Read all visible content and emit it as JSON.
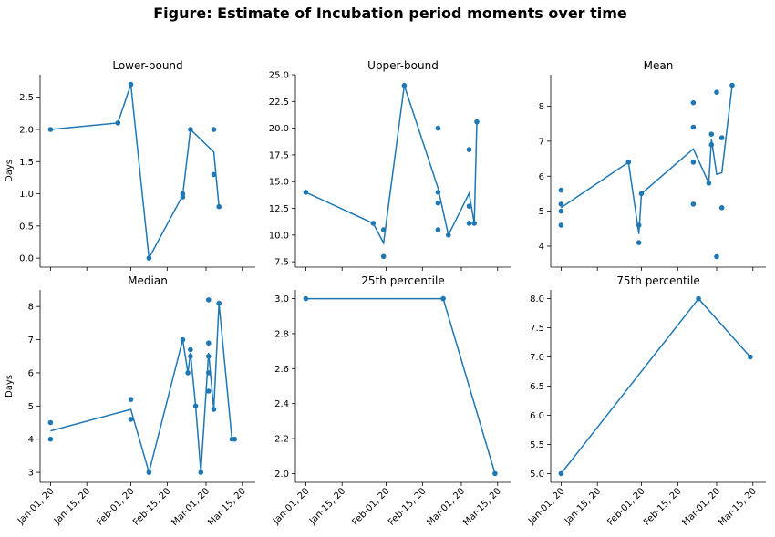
{
  "figure": {
    "title": "Figure: Estimate of Incubation period moments over time",
    "line_color": "#1f77b4",
    "point_color": "#1f77b4",
    "ylabel": "Days"
  },
  "chart_data": [
    {
      "type": "scatter",
      "title": "Lower-bound",
      "ylabel": "Days",
      "x_ticks": [
        "2020-01-01",
        "2020-01-15",
        "2020-02-01",
        "2020-02-15",
        "2020-03-01",
        "2020-03-15"
      ],
      "x_tick_labels": [
        "Jan-01, 20",
        "Jan-15, 20",
        "Feb-01, 20",
        "Feb-15, 20",
        "Mar-01, 20",
        "Mar-15, 20"
      ],
      "xlim": [
        "2019-12-28",
        "2020-03-20"
      ],
      "ylim": [
        -0.14,
        2.85
      ],
      "y_ticks": [
        0.0,
        0.5,
        1.0,
        1.5,
        2.0,
        2.5
      ],
      "y_tick_labels": [
        "0.0",
        "0.5",
        "1.0",
        "1.5",
        "2.0",
        "2.5"
      ],
      "show_x_labels": false,
      "points": [
        {
          "x": "2020-01-01",
          "y": 2.0
        },
        {
          "x": "2020-01-27",
          "y": 2.1
        },
        {
          "x": "2020-02-01",
          "y": 2.7
        },
        {
          "x": "2020-02-08",
          "y": 0.0
        },
        {
          "x": "2020-02-21",
          "y": 0.95
        },
        {
          "x": "2020-02-21",
          "y": 1.0
        },
        {
          "x": "2020-02-24",
          "y": 2.0
        },
        {
          "x": "2020-03-04",
          "y": 2.0
        },
        {
          "x": "2020-03-04",
          "y": 1.3
        },
        {
          "x": "2020-03-06",
          "y": 0.8
        }
      ],
      "line": [
        {
          "x": "2020-01-01",
          "y": 2.0
        },
        {
          "x": "2020-01-27",
          "y": 2.1
        },
        {
          "x": "2020-02-01",
          "y": 2.7
        },
        {
          "x": "2020-02-08",
          "y": 0.0
        },
        {
          "x": "2020-02-21",
          "y": 0.975
        },
        {
          "x": "2020-02-24",
          "y": 2.0
        },
        {
          "x": "2020-03-04",
          "y": 1.65
        },
        {
          "x": "2020-03-06",
          "y": 0.8
        }
      ]
    },
    {
      "type": "scatter",
      "title": "Upper-bound",
      "ylabel": "",
      "x_ticks": [
        "2020-01-01",
        "2020-01-15",
        "2020-02-01",
        "2020-02-15",
        "2020-03-01",
        "2020-03-15"
      ],
      "x_tick_labels": [
        "Jan-01, 20",
        "Jan-15, 20",
        "Feb-01, 20",
        "Feb-15, 20",
        "Mar-01, 20",
        "Mar-15, 20"
      ],
      "xlim": [
        "2019-12-28",
        "2020-03-20"
      ],
      "ylim": [
        7.0,
        25.0
      ],
      "y_ticks": [
        7.5,
        10.0,
        12.5,
        15.0,
        17.5,
        20.0,
        22.5,
        25.0
      ],
      "y_tick_labels": [
        "7.5",
        "10.0",
        "12.5",
        "15.0",
        "17.5",
        "20.0",
        "22.5",
        "25.0"
      ],
      "show_x_labels": false,
      "points": [
        {
          "x": "2020-01-01",
          "y": 14.0
        },
        {
          "x": "2020-01-27",
          "y": 11.1
        },
        {
          "x": "2020-01-31",
          "y": 8.0
        },
        {
          "x": "2020-01-31",
          "y": 10.5
        },
        {
          "x": "2020-02-08",
          "y": 24.0
        },
        {
          "x": "2020-02-21",
          "y": 20.0
        },
        {
          "x": "2020-02-21",
          "y": 14.0
        },
        {
          "x": "2020-02-21",
          "y": 13.0
        },
        {
          "x": "2020-02-21",
          "y": 10.5
        },
        {
          "x": "2020-02-25",
          "y": 10.0
        },
        {
          "x": "2020-03-04",
          "y": 18.0
        },
        {
          "x": "2020-03-04",
          "y": 12.7
        },
        {
          "x": "2020-03-04",
          "y": 11.1
        },
        {
          "x": "2020-03-06",
          "y": 11.1
        },
        {
          "x": "2020-03-07",
          "y": 20.6
        }
      ],
      "line": [
        {
          "x": "2020-01-01",
          "y": 14.0
        },
        {
          "x": "2020-01-27",
          "y": 11.1
        },
        {
          "x": "2020-01-31",
          "y": 9.25
        },
        {
          "x": "2020-02-08",
          "y": 24.0
        },
        {
          "x": "2020-02-21",
          "y": 14.4
        },
        {
          "x": "2020-02-25",
          "y": 10.0
        },
        {
          "x": "2020-03-04",
          "y": 13.9
        },
        {
          "x": "2020-03-06",
          "y": 11.1
        },
        {
          "x": "2020-03-07",
          "y": 20.6
        }
      ]
    },
    {
      "type": "scatter",
      "title": "Mean",
      "ylabel": "",
      "x_ticks": [
        "2020-01-01",
        "2020-01-15",
        "2020-02-01",
        "2020-02-15",
        "2020-03-01",
        "2020-03-15"
      ],
      "x_tick_labels": [
        "Jan-01, 20",
        "Jan-15, 20",
        "Feb-01, 20",
        "Feb-15, 20",
        "Mar-01, 20",
        "Mar-15, 20"
      ],
      "xlim": [
        "2019-12-28",
        "2020-03-20"
      ],
      "ylim": [
        3.4,
        8.9
      ],
      "y_ticks": [
        4,
        5,
        6,
        7,
        8
      ],
      "y_tick_labels": [
        "4",
        "5",
        "6",
        "7",
        "8"
      ],
      "show_x_labels": false,
      "points": [
        {
          "x": "2020-01-01",
          "y": 5.6
        },
        {
          "x": "2020-01-01",
          "y": 5.2
        },
        {
          "x": "2020-01-01",
          "y": 5.0
        },
        {
          "x": "2020-01-01",
          "y": 4.6
        },
        {
          "x": "2020-01-27",
          "y": 6.4
        },
        {
          "x": "2020-01-31",
          "y": 4.6
        },
        {
          "x": "2020-01-31",
          "y": 4.1
        },
        {
          "x": "2020-02-01",
          "y": 5.5
        },
        {
          "x": "2020-02-21",
          "y": 8.1
        },
        {
          "x": "2020-02-21",
          "y": 7.4
        },
        {
          "x": "2020-02-21",
          "y": 6.4
        },
        {
          "x": "2020-02-21",
          "y": 5.2
        },
        {
          "x": "2020-02-27",
          "y": 5.8
        },
        {
          "x": "2020-02-28",
          "y": 7.2
        },
        {
          "x": "2020-02-28",
          "y": 6.9
        },
        {
          "x": "2020-03-01",
          "y": 8.4
        },
        {
          "x": "2020-03-01",
          "y": 3.7
        },
        {
          "x": "2020-03-03",
          "y": 7.1
        },
        {
          "x": "2020-03-03",
          "y": 5.1
        },
        {
          "x": "2020-03-07",
          "y": 8.6
        }
      ],
      "line": [
        {
          "x": "2020-01-01",
          "y": 5.1
        },
        {
          "x": "2020-01-27",
          "y": 6.4
        },
        {
          "x": "2020-01-31",
          "y": 4.35
        },
        {
          "x": "2020-02-01",
          "y": 5.5
        },
        {
          "x": "2020-02-21",
          "y": 6.78
        },
        {
          "x": "2020-02-27",
          "y": 5.8
        },
        {
          "x": "2020-02-28",
          "y": 7.05
        },
        {
          "x": "2020-03-01",
          "y": 6.05
        },
        {
          "x": "2020-03-03",
          "y": 6.1
        },
        {
          "x": "2020-03-07",
          "y": 8.6
        }
      ]
    },
    {
      "type": "scatter",
      "title": "Median",
      "ylabel": "Days",
      "x_ticks": [
        "2020-01-01",
        "2020-01-15",
        "2020-02-01",
        "2020-02-15",
        "2020-03-01",
        "2020-03-15"
      ],
      "x_tick_labels": [
        "Jan-01, 20",
        "Jan-15, 20",
        "Feb-01, 20",
        "Feb-15, 20",
        "Mar-01, 20",
        "Mar-15, 20"
      ],
      "xlim": [
        "2019-12-28",
        "2020-03-20"
      ],
      "ylim": [
        2.7,
        8.5
      ],
      "y_ticks": [
        3,
        4,
        5,
        6,
        7,
        8
      ],
      "y_tick_labels": [
        "3",
        "4",
        "5",
        "6",
        "7",
        "8"
      ],
      "show_x_labels": true,
      "points": [
        {
          "x": "2020-01-01",
          "y": 4.5
        },
        {
          "x": "2020-01-01",
          "y": 4.0
        },
        {
          "x": "2020-02-01",
          "y": 5.2
        },
        {
          "x": "2020-02-01",
          "y": 4.6
        },
        {
          "x": "2020-02-08",
          "y": 3.0
        },
        {
          "x": "2020-02-21",
          "y": 7.0
        },
        {
          "x": "2020-02-23",
          "y": 6.0
        },
        {
          "x": "2020-02-24",
          "y": 6.7
        },
        {
          "x": "2020-02-24",
          "y": 6.5
        },
        {
          "x": "2020-02-26",
          "y": 5.0
        },
        {
          "x": "2020-02-28",
          "y": 3.0
        },
        {
          "x": "2020-03-02",
          "y": 8.2
        },
        {
          "x": "2020-03-02",
          "y": 6.9
        },
        {
          "x": "2020-03-02",
          "y": 6.5
        },
        {
          "x": "2020-03-02",
          "y": 6.0
        },
        {
          "x": "2020-03-02",
          "y": 5.45
        },
        {
          "x": "2020-03-04",
          "y": 4.9
        },
        {
          "x": "2020-03-06",
          "y": 8.1
        },
        {
          "x": "2020-03-11",
          "y": 4.0
        },
        {
          "x": "2020-03-12",
          "y": 4.0
        }
      ],
      "line": [
        {
          "x": "2020-01-01",
          "y": 4.25
        },
        {
          "x": "2020-02-01",
          "y": 4.9
        },
        {
          "x": "2020-02-08",
          "y": 3.0
        },
        {
          "x": "2020-02-21",
          "y": 7.0
        },
        {
          "x": "2020-02-23",
          "y": 6.0
        },
        {
          "x": "2020-02-24",
          "y": 6.6
        },
        {
          "x": "2020-02-26",
          "y": 5.0
        },
        {
          "x": "2020-02-28",
          "y": 3.0
        },
        {
          "x": "2020-03-02",
          "y": 6.6
        },
        {
          "x": "2020-03-04",
          "y": 4.9
        },
        {
          "x": "2020-03-06",
          "y": 8.1
        },
        {
          "x": "2020-03-11",
          "y": 4.0
        },
        {
          "x": "2020-03-12",
          "y": 4.0
        }
      ]
    },
    {
      "type": "scatter",
      "title": "25th percentile",
      "ylabel": "",
      "x_ticks": [
        "2020-01-01",
        "2020-01-15",
        "2020-02-01",
        "2020-02-15",
        "2020-03-01",
        "2020-03-15"
      ],
      "x_tick_labels": [
        "Jan-01, 20",
        "Jan-15, 20",
        "Feb-01, 20",
        "Feb-15, 20",
        "Mar-01, 20",
        "Mar-15, 20"
      ],
      "xlim": [
        "2019-12-28",
        "2020-03-20"
      ],
      "ylim": [
        1.95,
        3.05
      ],
      "y_ticks": [
        2.0,
        2.2,
        2.4,
        2.6,
        2.8,
        3.0
      ],
      "y_tick_labels": [
        "2.0",
        "2.2",
        "2.4",
        "2.6",
        "2.8",
        "3.0"
      ],
      "show_x_labels": true,
      "points": [
        {
          "x": "2020-01-01",
          "y": 3.0
        },
        {
          "x": "2020-02-23",
          "y": 3.0
        },
        {
          "x": "2020-03-14",
          "y": 2.0
        }
      ],
      "line": [
        {
          "x": "2020-01-01",
          "y": 3.0
        },
        {
          "x": "2020-02-23",
          "y": 3.0
        },
        {
          "x": "2020-03-14",
          "y": 2.0
        }
      ]
    },
    {
      "type": "scatter",
      "title": "75th percentile",
      "ylabel": "",
      "x_ticks": [
        "2020-01-01",
        "2020-01-15",
        "2020-02-01",
        "2020-02-15",
        "2020-03-01",
        "2020-03-15"
      ],
      "x_tick_labels": [
        "Jan-01, 20",
        "Jan-15, 20",
        "Feb-01, 20",
        "Feb-15, 20",
        "Mar-01, 20",
        "Mar-15, 20"
      ],
      "xlim": [
        "2019-12-28",
        "2020-03-20"
      ],
      "ylim": [
        4.85,
        8.15
      ],
      "y_ticks": [
        5.0,
        5.5,
        6.0,
        6.5,
        7.0,
        7.5,
        8.0
      ],
      "y_tick_labels": [
        "5.0",
        "5.5",
        "6.0",
        "6.5",
        "7.0",
        "7.5",
        "8.0"
      ],
      "show_x_labels": true,
      "points": [
        {
          "x": "2020-01-01",
          "y": 5.0
        },
        {
          "x": "2020-02-23",
          "y": 8.0
        },
        {
          "x": "2020-03-14",
          "y": 7.0
        }
      ],
      "line": [
        {
          "x": "2020-01-01",
          "y": 5.0
        },
        {
          "x": "2020-02-23",
          "y": 8.0
        },
        {
          "x": "2020-03-14",
          "y": 7.0
        }
      ]
    }
  ]
}
